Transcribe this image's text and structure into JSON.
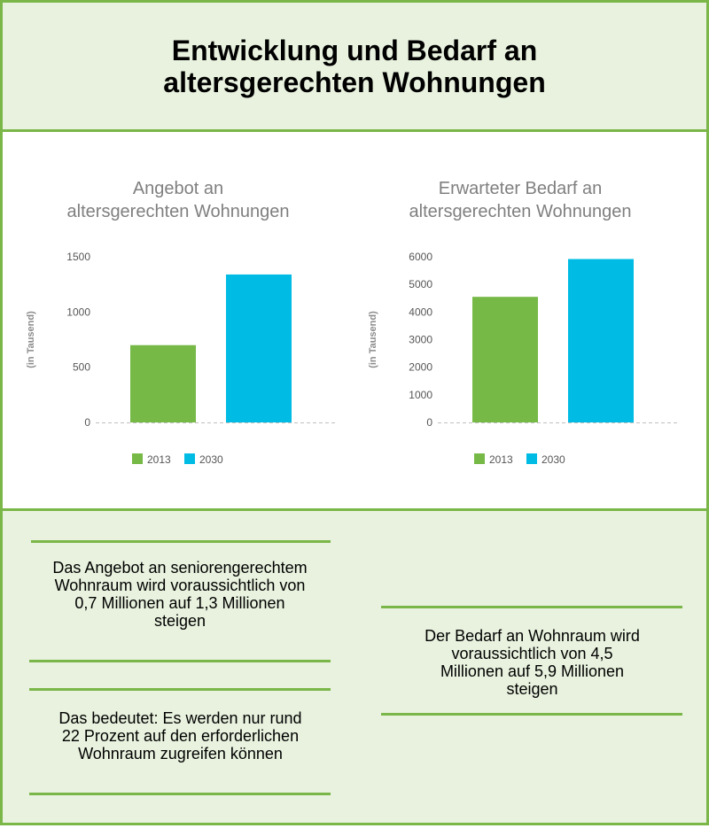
{
  "title": "Entwicklung und Bedarf an altersgerechten Wohnungen",
  "colors": {
    "accent": "#7ab648",
    "series_2013": "#76b946",
    "series_2030": "#00bce4"
  },
  "chart_data": [
    {
      "type": "bar",
      "title": "Angebot an altersgerechten Wohnungen",
      "ylabel": "(in Tausend)",
      "ylim": [
        0,
        1500
      ],
      "yticks": [
        0,
        500,
        1000,
        1500
      ],
      "grid": false,
      "legend_position": "bottom",
      "series": [
        {
          "name": "2013",
          "values": [
            700
          ]
        },
        {
          "name": "2030",
          "values": [
            1340
          ]
        }
      ]
    },
    {
      "type": "bar",
      "title": "Erwarteter Bedarf an altersgerechten Wohnungen",
      "ylabel": "(in Tausend)",
      "ylim": [
        0,
        6000
      ],
      "yticks": [
        0,
        1000,
        2000,
        3000,
        4000,
        5000,
        6000
      ],
      "grid": false,
      "legend_position": "bottom",
      "series": [
        {
          "name": "2013",
          "values": [
            4550
          ]
        },
        {
          "name": "2030",
          "values": [
            5920
          ]
        }
      ]
    }
  ],
  "notes": {
    "angebot": "Das Angebot an seniorengerechtem Wohnraum wird voraussichtlich von 0,7 Millionen auf 1,3 Millionen steigen",
    "bedeutet": "Das bedeutet: Es werden nur rund 22 Prozent auf den erforderlichen Wohnraum zugreifen können",
    "bedarf": "Der Bedarf an Wohnraum wird voraussichtlich von 4,5 Millionen auf 5,9 Millionen steigen"
  }
}
